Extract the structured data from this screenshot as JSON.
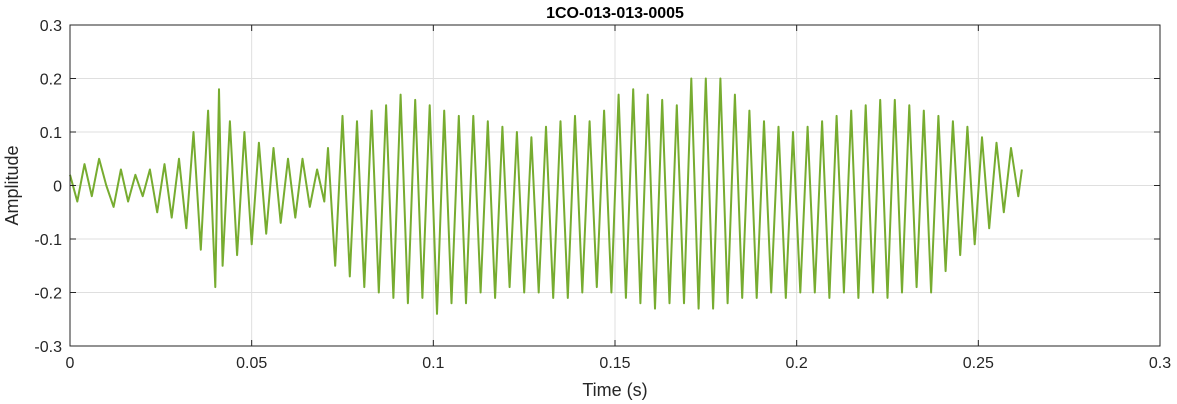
{
  "chart_data": {
    "type": "line",
    "title": "1CO-013-013-0005",
    "xlabel": "Time (s)",
    "ylabel": "Amplitude",
    "xlim": [
      0,
      0.3
    ],
    "ylim": [
      -0.3,
      0.3
    ],
    "xticks": [
      0,
      0.05,
      0.1,
      0.15,
      0.2,
      0.25,
      0.3
    ],
    "xtick_labels": [
      "0",
      "0.05",
      "0.1",
      "0.15",
      "0.2",
      "0.25",
      "0.3"
    ],
    "yticks": [
      -0.3,
      -0.2,
      -0.1,
      0,
      0.1,
      0.2,
      0.3
    ],
    "ytick_labels": [
      "-0.3",
      "-0.2",
      "-0.1",
      "0",
      "0.1",
      "0.2",
      "0.3"
    ],
    "grid": true,
    "legend": "none",
    "series": [
      {
        "color": "#77AC30",
        "x": [
          0,
          0.002,
          0.004,
          0.006,
          0.008,
          0.01,
          0.012,
          0.014,
          0.016,
          0.018,
          0.02,
          0.022,
          0.024,
          0.026,
          0.028,
          0.03,
          0.032,
          0.034,
          0.036,
          0.038,
          0.04,
          0.041,
          0.042,
          0.044,
          0.046,
          0.048,
          0.05,
          0.052,
          0.054,
          0.056,
          0.058,
          0.06,
          0.062,
          0.064,
          0.066,
          0.068,
          0.07,
          0.071,
          0.073,
          0.075,
          0.077,
          0.079,
          0.081,
          0.083,
          0.085,
          0.087,
          0.089,
          0.091,
          0.093,
          0.095,
          0.097,
          0.099,
          0.101,
          0.103,
          0.105,
          0.107,
          0.109,
          0.111,
          0.113,
          0.115,
          0.117,
          0.119,
          0.121,
          0.123,
          0.125,
          0.127,
          0.129,
          0.131,
          0.133,
          0.135,
          0.137,
          0.139,
          0.141,
          0.143,
          0.145,
          0.147,
          0.149,
          0.151,
          0.153,
          0.155,
          0.157,
          0.159,
          0.161,
          0.163,
          0.165,
          0.167,
          0.169,
          0.171,
          0.173,
          0.175,
          0.177,
          0.179,
          0.181,
          0.183,
          0.185,
          0.187,
          0.189,
          0.191,
          0.193,
          0.195,
          0.197,
          0.199,
          0.201,
          0.203,
          0.205,
          0.207,
          0.209,
          0.211,
          0.213,
          0.215,
          0.217,
          0.219,
          0.221,
          0.223,
          0.225,
          0.227,
          0.229,
          0.231,
          0.233,
          0.235,
          0.237,
          0.239,
          0.241,
          0.243,
          0.245,
          0.247,
          0.249,
          0.251,
          0.253,
          0.255,
          0.257,
          0.259,
          0.261,
          0.262
        ],
        "y": [
          0.02,
          -0.03,
          0.04,
          -0.02,
          0.05,
          0.0,
          -0.04,
          0.03,
          -0.03,
          0.02,
          -0.02,
          0.03,
          -0.05,
          0.04,
          -0.06,
          0.05,
          -0.08,
          0.1,
          -0.12,
          0.14,
          -0.19,
          0.18,
          -0.15,
          0.12,
          -0.13,
          0.1,
          -0.11,
          0.08,
          -0.09,
          0.07,
          -0.07,
          0.05,
          -0.06,
          0.05,
          -0.04,
          0.03,
          -0.03,
          0.07,
          -0.15,
          0.13,
          -0.17,
          0.12,
          -0.19,
          0.14,
          -0.2,
          0.15,
          -0.21,
          0.17,
          -0.22,
          0.16,
          -0.21,
          0.15,
          -0.24,
          0.14,
          -0.22,
          0.13,
          -0.22,
          0.13,
          -0.2,
          0.12,
          -0.21,
          0.11,
          -0.19,
          0.1,
          -0.2,
          0.09,
          -0.2,
          0.11,
          -0.21,
          0.12,
          -0.21,
          0.13,
          -0.2,
          0.12,
          -0.19,
          0.14,
          -0.2,
          0.17,
          -0.21,
          0.18,
          -0.22,
          0.17,
          -0.23,
          0.16,
          -0.22,
          0.15,
          -0.22,
          0.2,
          -0.23,
          0.2,
          -0.23,
          0.2,
          -0.22,
          0.17,
          -0.21,
          0.14,
          -0.21,
          0.12,
          -0.2,
          0.11,
          -0.21,
          0.1,
          -0.2,
          0.11,
          -0.2,
          0.12,
          -0.21,
          0.13,
          -0.2,
          0.14,
          -0.21,
          0.15,
          -0.2,
          0.16,
          -0.21,
          0.16,
          -0.2,
          0.15,
          -0.19,
          0.14,
          -0.2,
          0.13,
          -0.16,
          0.12,
          -0.13,
          0.11,
          -0.11,
          0.09,
          -0.08,
          0.08,
          -0.05,
          0.07,
          -0.02,
          0.03
        ]
      }
    ]
  }
}
